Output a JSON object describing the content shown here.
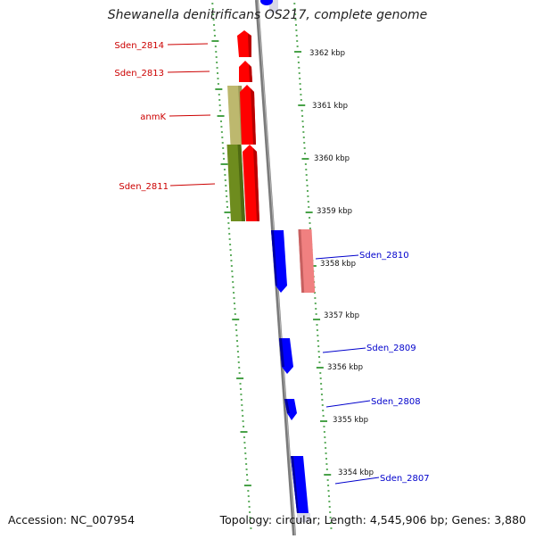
{
  "title": "Shewanella denitrificans OS217, complete genome",
  "footer": {
    "accession": "Accession: NC_007954",
    "topology": "Topology: circular; Length: 4,545,906 bp; Genes: 3,880"
  },
  "colors": {
    "forward_gene": "#ff0000",
    "reverse_gene": "#0000ff",
    "forward_label": "#cc0000",
    "reverse_label": "#0000cc",
    "tick": "#1b8a1b",
    "backbone": "#8a8a8a",
    "cog_forward": "#6e8c1e",
    "cog_forward_light": "#bdb86e",
    "cog_reverse": "#f08080"
  },
  "scale_ticks": [
    "3362 kbp",
    "3361 kbp",
    "3360 kbp",
    "3359 kbp",
    "3358 kbp",
    "3357 kbp",
    "3356 kbp",
    "3355 kbp",
    "3354 kbp"
  ],
  "gene_labels_left": [
    "Sden_2814",
    "Sden_2813",
    "anmK",
    "Sden_2811"
  ],
  "gene_labels_right": [
    "Sden_2810",
    "Sden_2809",
    "Sden_2808",
    "Sden_2807"
  ]
}
